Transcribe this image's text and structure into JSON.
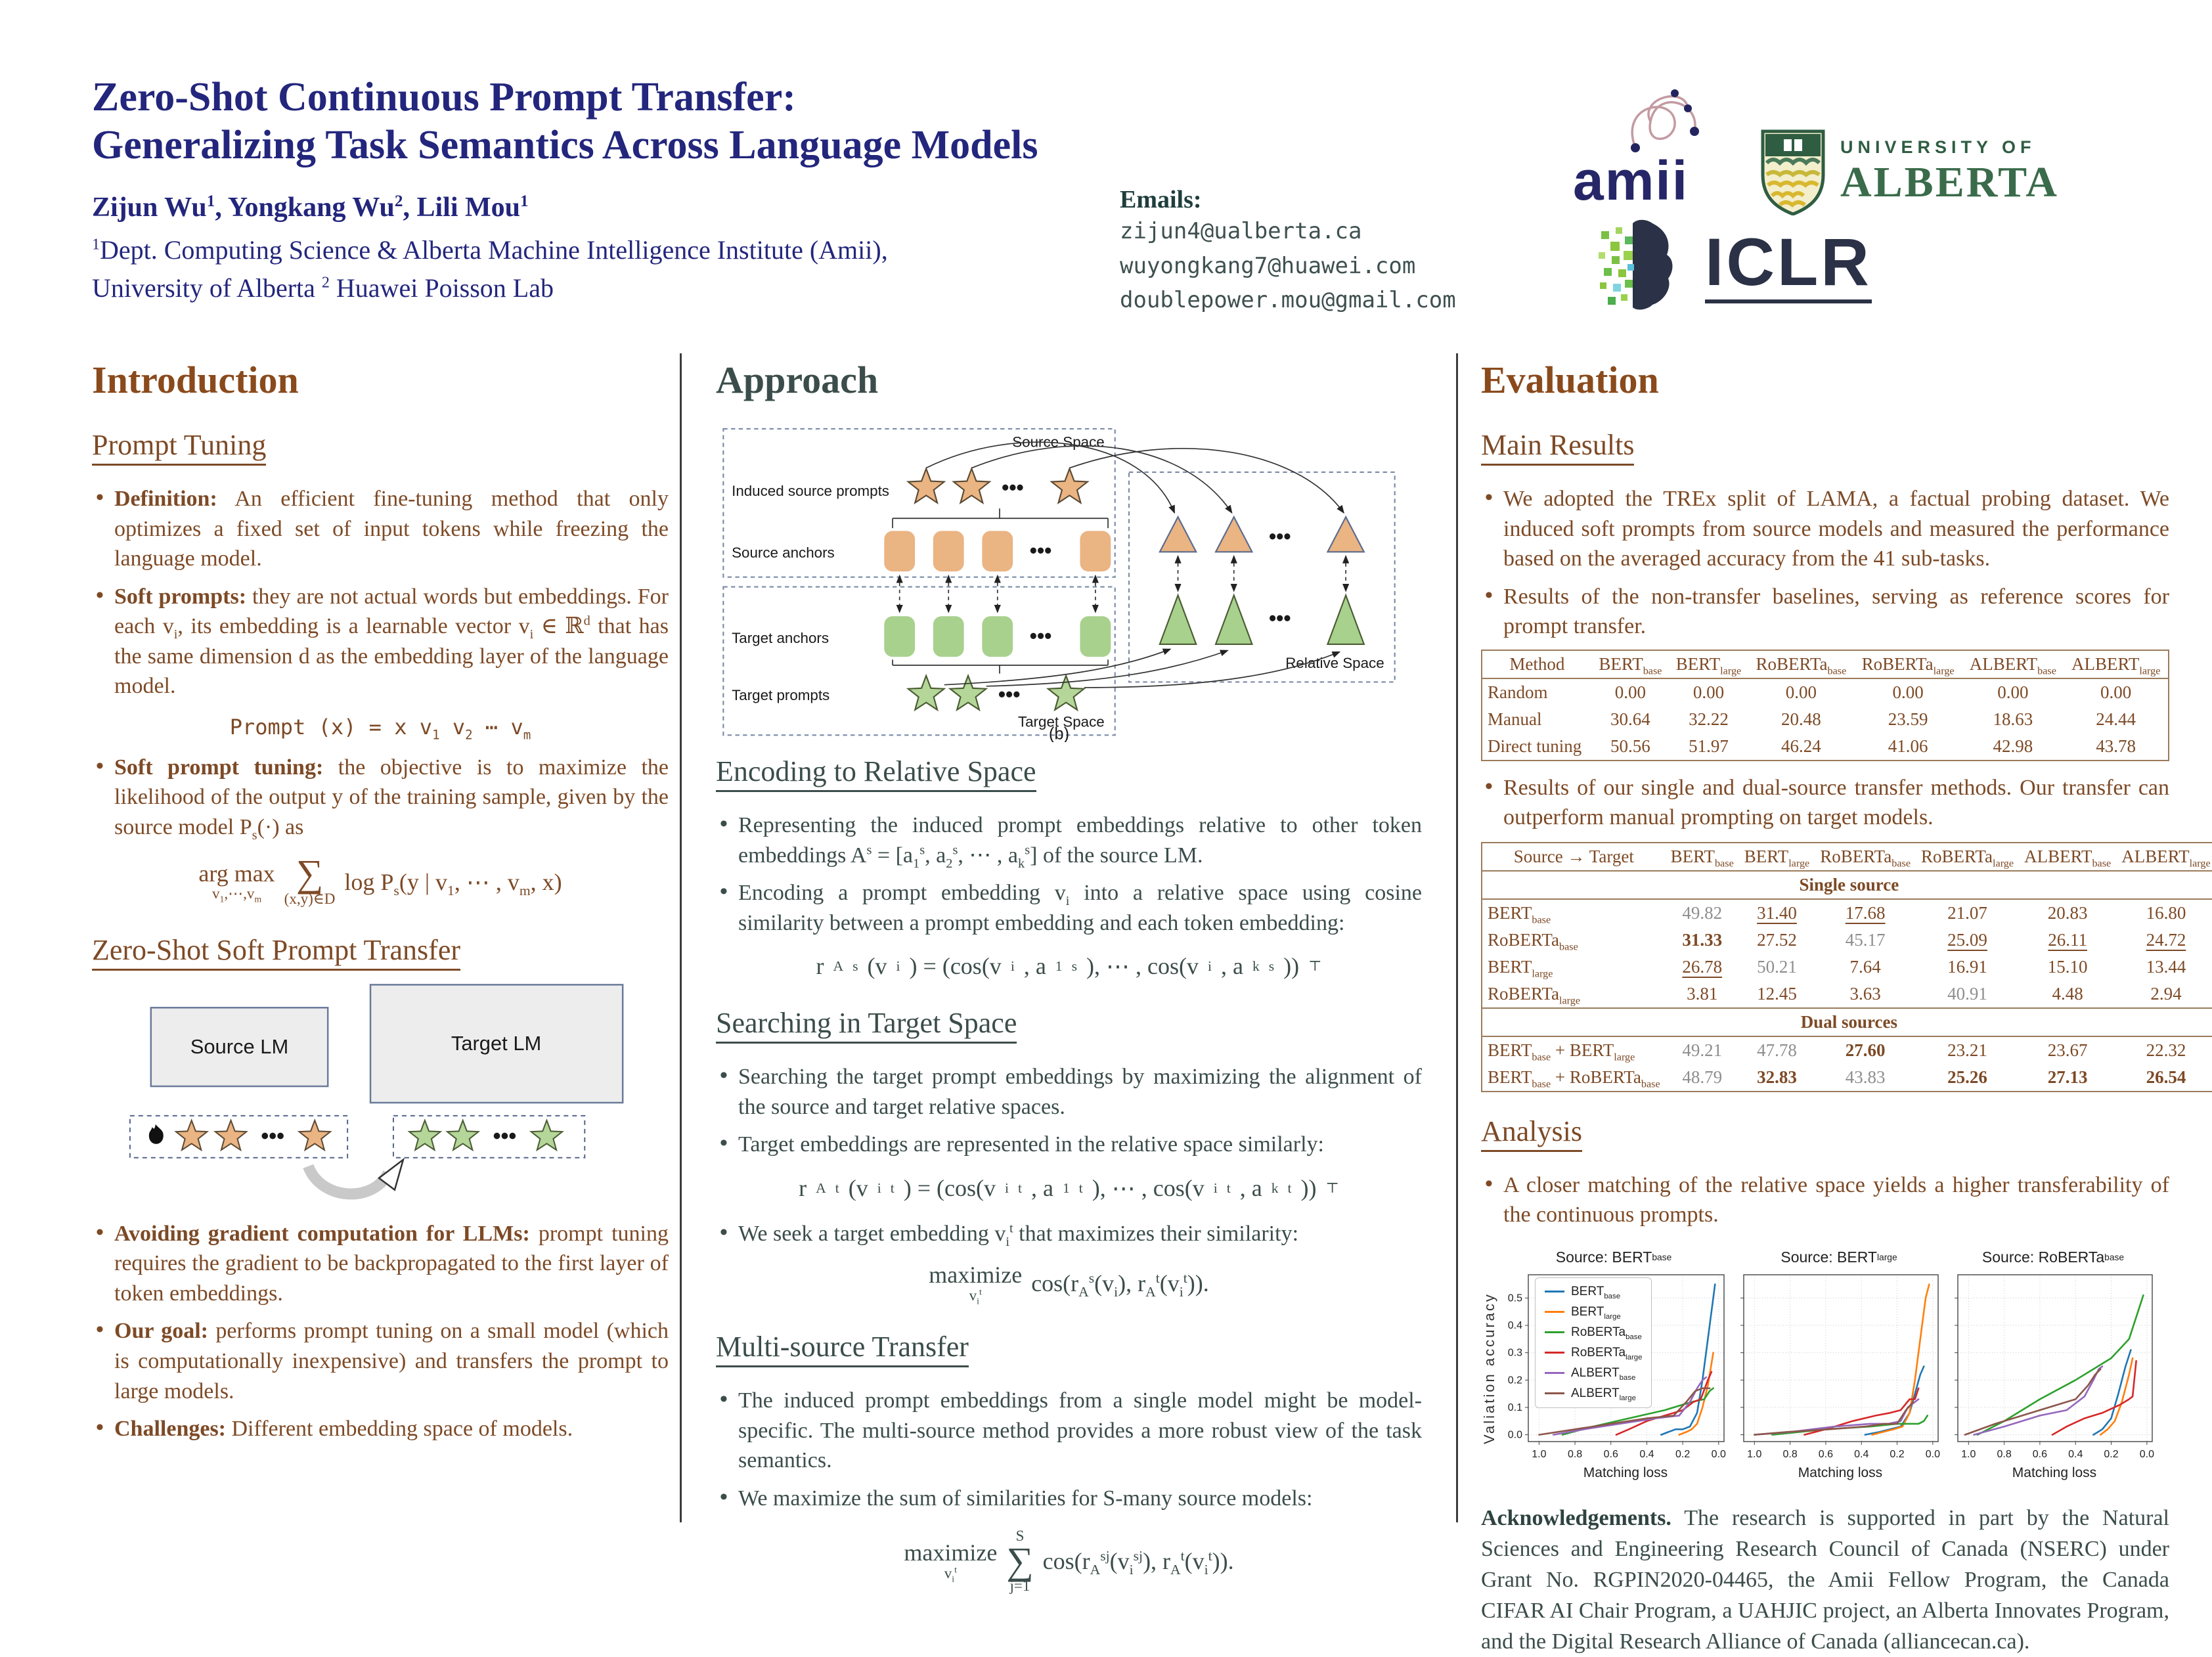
{
  "header": {
    "title_line1": "Zero-Shot Continuous Prompt Transfer:",
    "title_line2": "Generalizing Task Semantics Across Language Models",
    "authors": "Zijun Wu^{1}, Yongkang Wu^{2}, Lili Mou^{1}",
    "affil_line1": "^{1}Dept. Computing Science & Alberta Machine Intelligence Institute (Amii),",
    "affil_line2": "University of Alberta ^{2} Huawei Poisson Lab",
    "emails_label": "Emails:",
    "emails": [
      "zijun4@ualberta.ca",
      "wuyongkang7@huawei.com",
      "doublepower.mou@gmail.com"
    ],
    "logos": {
      "amii": "amii",
      "uofa_line1": "UNIVERSITY OF",
      "uofa_line2": "ALBERTA",
      "iclr": "ICLR"
    }
  },
  "intro": {
    "heading": "Introduction",
    "sub1": "Prompt Tuning",
    "b1": {
      "lead": "Definition:",
      "rest": " An efficient fine-tuning method that only optimizes a fixed set of input tokens while freezing the language model."
    },
    "b2": {
      "lead": "Soft prompts:",
      "rest": " they are not actual words but embeddings. For each v_{i}, its embedding is a learnable vector v_{i} ∈ ℝ^{d} that has the same dimension d as the embedding layer of the language model."
    },
    "eq_prompt": "Prompt (x) = x v_{1} v_{2} ⋯ v_{m}",
    "b3": {
      "lead": "Soft prompt tuning:",
      "rest": " the objective is to maximize the likelihood of the output y of the training sample, given by the source model P_{s}(·) as"
    },
    "eq_argmax": {
      "op": "arg max",
      "op_under": "v_{1},⋯,v_{m}",
      "sum": "∑",
      "sum_under": "(x,y)∈D",
      "body": "log P_{s}(y | v_{1}, ⋯ , v_{m}, x)"
    },
    "sub2": "Zero-Shot Soft Prompt Transfer",
    "diagram": {
      "source_lm": "Source LM",
      "target_lm": "Target LM"
    },
    "b4": {
      "lead": "Avoiding gradient computation for LLMs:",
      "rest": " prompt tuning requires the gradient to be backpropagated to the first layer of token embeddings."
    },
    "b5": {
      "lead": "Our goal:",
      "rest": " performs prompt tuning on a small model (which is computationally inexpensive) and transfers the prompt to large models."
    },
    "b6": {
      "lead": "Challenges:",
      "rest": " Different embedding space of models."
    }
  },
  "approach": {
    "heading": "Approach",
    "figure": {
      "source_space": "Source Space",
      "induced_source_prompts": "Induced source prompts",
      "source_anchors": "Source anchors",
      "target_anchors": "Target anchors",
      "target_prompts": "Target prompts",
      "target_space": "Target Space",
      "relative_space": "Relative Space",
      "caption": "(b)",
      "dots": "•••"
    },
    "sub1": "Encoding to Relative Space",
    "b1": "Representing the induced prompt embeddings relative to other token embeddings A^{s} = [a_{1}^{s}, a_{2}^{s}, ⋯ , a_{k}^{s}] of the source LM.",
    "b2": "Encoding a prompt embedding v_{i} into a relative space using cosine similarity between a prompt embedding and each token embedding:",
    "eq_rs": "r_{A}^{s}(v_{i}) = (cos(v_{i}, a_{1}^{s}), ⋯ , cos(v_{i}, a_{k}^{s}))^{⊤}",
    "sub2": "Searching in Target Space",
    "b3": "Searching the target prompt embeddings by maximizing the alignment of the source and target relative spaces.",
    "b4": "Target embeddings are represented in the relative space similarly:",
    "eq_rt": "r_{A}^{t}(v_{i}^{t}) = (cos(v_{i}^{t}, a_{1}^{t}), ⋯ , cos(v_{i}^{t}, a_{k}^{t}))^{⊤}",
    "b5": "We seek a target embedding v_{i}^{t} that maximizes their similarity:",
    "eq_max": {
      "op": "maximize",
      "op_under": "v_{i}^{t}",
      "body": "cos(r_{A}^{s}(v_{i}), r_{A}^{t}(v_{i}^{t}))."
    },
    "sub3": "Multi-source Transfer",
    "b6": "The induced prompt embeddings from a single model might be model-specific. The multi-source method provides a more robust view of the task semantics.",
    "b7": "We maximize the sum of similarities for S-many source models:",
    "eq_multi": {
      "op": "maximize",
      "op_under": "v_{i}^{t}",
      "sum_top": "S",
      "sum": "∑",
      "sum_under": "j=1",
      "body": "cos(r_{A}^{sj}(v_{i}^{sj}), r_{A}^{t}(v_{i}^{t}))."
    }
  },
  "evaluation": {
    "heading": "Evaluation",
    "sub1": "Main Results",
    "b1": "We adopted the TREx split of LAMA, a factual probing dataset. We induced soft prompts from source models and measured the performance based on the averaged accuracy from the 41 sub-tasks.",
    "b2": "Results of the non-transfer baselines, serving as reference scores for prompt transfer.",
    "table1": {
      "headers": [
        "Method",
        "BERT_{base}",
        "BERT_{large}",
        "RoBERTa_{base}",
        "RoBERTa_{large}",
        "ALBERT_{base}",
        "ALBERT_{large}"
      ],
      "rows": [
        [
          "Random",
          "0.00",
          "0.00",
          "0.00",
          "0.00",
          "0.00",
          "0.00"
        ],
        [
          "Manual",
          "30.64",
          "32.22",
          "20.48",
          "23.59",
          "18.63",
          "24.44"
        ],
        [
          "Direct tuning",
          "50.56",
          "51.97",
          "46.24",
          "41.06",
          "42.98",
          "43.78"
        ]
      ]
    },
    "b3": "Results of our single and dual-source transfer methods. Our transfer can outperform manual prompting on target models.",
    "table2": {
      "headers": [
        "Source → Target",
        "BERT_{base}",
        "BERT_{large}",
        "RoBERTa_{base}",
        "RoBERTa_{large}",
        "ALBERT_{base}",
        "ALBERT_{large}"
      ],
      "groups": [
        {
          "label": "Single source",
          "rows": [
            {
              "label": "BERT_{base}",
              "cells": [
                "49.82|g",
                "31.40|u",
                "17.68|u",
                "21.07",
                "20.83",
                "16.80"
              ]
            },
            {
              "label": "RoBERTa_{base}",
              "cells": [
                "31.33|b",
                "27.52",
                "45.17|g",
                "25.09|u",
                "26.11|u",
                "24.72|u"
              ]
            },
            {
              "label": "BERT_{large}",
              "cells": [
                "26.78|u",
                "50.21|g",
                "7.64",
                "16.91",
                "15.10",
                "13.44"
              ]
            },
            {
              "label": "RoBERTa_{large}",
              "cells": [
                "3.81",
                "12.45",
                "3.63",
                "40.91|g",
                "4.48",
                "2.94"
              ]
            }
          ]
        },
        {
          "label": "Dual sources",
          "rows": [
            {
              "label": "BERT_{base} + BERT_{large}",
              "cells": [
                "49.21|g",
                "47.78|g",
                "27.60|b",
                "23.21",
                "23.67",
                "22.32"
              ]
            },
            {
              "label": "BERT_{base} + RoBERTa_{base}",
              "cells": [
                "48.79|g",
                "32.83|b",
                "43.83|g",
                "25.26|b",
                "27.13|b",
                "26.54|b"
              ]
            }
          ]
        }
      ]
    },
    "sub2": "Analysis",
    "b4": "A closer matching of the relative space yields a higher transferability of the continuous prompts.",
    "ack_lead": "Acknowledgements.",
    "ack_rest": " The research is supported in part by the Natural Sciences and Engineering Research Council of Canada (NSERC) under Grant No. RGPIN2020-04465, the Amii Fellow Program, the Canada CIFAR AI Chair Program, a UAHJIC project, an Alberta Innovates Program, and the Digital Research Alliance of Canada (alliancecan.ca)."
  },
  "chart_data": {
    "type": "line",
    "xlabel": "Matching loss",
    "ylabel": "Valiation accuracy",
    "x_ticks": [
      1.0,
      0.8,
      0.6,
      0.4,
      0.2,
      0.0
    ],
    "y_ticks": [
      0.0,
      0.1,
      0.2,
      0.3,
      0.4,
      0.5
    ],
    "x_reversed": true,
    "xlim": [
      1.06,
      -0.03
    ],
    "ylim": [
      -0.025,
      0.585
    ],
    "grid": true,
    "legend_position": "upper-left-first-panel",
    "legend": [
      "BERT_{base}",
      "BERT_{large}",
      "RoBERTa_{base}",
      "RoBERTa_{large}",
      "ALBERT_{base}",
      "ALBERT_{large}"
    ],
    "colors": [
      "#1f77b4",
      "#ff7f0e",
      "#2ca02c",
      "#d62728",
      "#9467bd",
      "#8c564b"
    ],
    "panels": [
      {
        "title": "Source: BERT_{base}",
        "series": [
          {
            "name": "BERT_{base}",
            "x": [
              0.32,
              0.28,
              0.24,
              0.2,
              0.16,
              0.12,
              0.09,
              0.06,
              0.03,
              0.02
            ],
            "y": [
              0.0,
              0.01,
              0.02,
              0.02,
              0.03,
              0.08,
              0.2,
              0.35,
              0.5,
              0.55
            ]
          },
          {
            "name": "BERT_{large}",
            "x": [
              0.22,
              0.18,
              0.15,
              0.12,
              0.09,
              0.06,
              0.04,
              0.03
            ],
            "y": [
              0.0,
              0.01,
              0.02,
              0.04,
              0.1,
              0.18,
              0.26,
              0.3
            ]
          },
          {
            "name": "RoBERTa_{base}",
            "x": [
              0.87,
              0.7,
              0.5,
              0.3,
              0.15,
              0.08,
              0.05,
              0.03
            ],
            "y": [
              0.0,
              0.03,
              0.06,
              0.09,
              0.12,
              0.13,
              0.16,
              0.17
            ]
          },
          {
            "name": "RoBERTa_{large}",
            "x": [
              0.57,
              0.5,
              0.4,
              0.3,
              0.2,
              0.14,
              0.1,
              0.06,
              0.04
            ],
            "y": [
              0.0,
              0.02,
              0.05,
              0.07,
              0.09,
              0.12,
              0.13,
              0.2,
              0.23
            ]
          },
          {
            "name": "ALBERT_{base}",
            "x": [
              0.92,
              0.75,
              0.55,
              0.35,
              0.22,
              0.16,
              0.12,
              0.09,
              0.07
            ],
            "y": [
              0.0,
              0.02,
              0.04,
              0.06,
              0.07,
              0.12,
              0.17,
              0.2,
              0.21
            ]
          },
          {
            "name": "ALBERT_{large}",
            "x": [
              1.0,
              0.8,
              0.6,
              0.4,
              0.25,
              0.18,
              0.13,
              0.09,
              0.05
            ],
            "y": [
              0.0,
              0.02,
              0.04,
              0.06,
              0.07,
              0.12,
              0.16,
              0.17,
              0.17
            ]
          }
        ]
      },
      {
        "title": "Source: BERT_{large}",
        "series": [
          {
            "name": "BERT_{base}",
            "x": [
              0.38,
              0.3,
              0.24,
              0.18,
              0.13,
              0.1,
              0.07,
              0.05
            ],
            "y": [
              0.0,
              0.01,
              0.02,
              0.03,
              0.08,
              0.15,
              0.22,
              0.25
            ]
          },
          {
            "name": "BERT_{large}",
            "x": [
              0.34,
              0.28,
              0.22,
              0.17,
              0.13,
              0.1,
              0.07,
              0.04,
              0.02
            ],
            "y": [
              0.0,
              0.01,
              0.02,
              0.03,
              0.08,
              0.2,
              0.35,
              0.5,
              0.55
            ]
          },
          {
            "name": "RoBERTa_{base}",
            "x": [
              0.9,
              0.6,
              0.35,
              0.2,
              0.12,
              0.08,
              0.05,
              0.03
            ],
            "y": [
              0.0,
              0.02,
              0.03,
              0.04,
              0.04,
              0.04,
              0.05,
              0.07
            ]
          },
          {
            "name": "RoBERTa_{large}",
            "x": [
              0.72,
              0.6,
              0.45,
              0.32,
              0.24,
              0.18,
              0.13,
              0.1,
              0.08
            ],
            "y": [
              0.0,
              0.02,
              0.05,
              0.07,
              0.08,
              0.09,
              0.13,
              0.13,
              0.17
            ]
          },
          {
            "name": "ALBERT_{base}",
            "x": [
              1.0,
              0.8,
              0.55,
              0.35,
              0.25,
              0.18,
              0.14,
              0.1,
              0.08
            ],
            "y": [
              0.0,
              0.01,
              0.03,
              0.04,
              0.04,
              0.05,
              0.1,
              0.12,
              0.13
            ]
          },
          {
            "name": "ALBERT_{large}",
            "x": [
              1.0,
              0.82,
              0.58,
              0.38,
              0.27,
              0.2,
              0.15,
              0.11
            ],
            "y": [
              0.0,
              0.01,
              0.02,
              0.03,
              0.04,
              0.04,
              0.09,
              0.12
            ]
          }
        ]
      },
      {
        "title": "Source: RoBERTa_{base}",
        "series": [
          {
            "name": "BERT_{base}",
            "x": [
              0.3,
              0.25,
              0.2,
              0.16,
              0.12,
              0.09
            ],
            "y": [
              0.0,
              0.02,
              0.06,
              0.15,
              0.25,
              0.31
            ]
          },
          {
            "name": "BERT_{large}",
            "x": [
              0.26,
              0.22,
              0.18,
              0.14,
              0.1,
              0.08
            ],
            "y": [
              0.0,
              0.02,
              0.05,
              0.12,
              0.22,
              0.28
            ]
          },
          {
            "name": "RoBERTa_{base}",
            "x": [
              0.95,
              0.8,
              0.6,
              0.4,
              0.2,
              0.1,
              0.05,
              0.02
            ],
            "y": [
              0.0,
              0.05,
              0.13,
              0.2,
              0.28,
              0.35,
              0.45,
              0.51
            ]
          },
          {
            "name": "RoBERTa_{large}",
            "x": [
              0.53,
              0.45,
              0.35,
              0.25,
              0.15,
              0.1,
              0.08,
              0.06
            ],
            "y": [
              0.0,
              0.03,
              0.06,
              0.08,
              0.11,
              0.13,
              0.14,
              0.27
            ]
          },
          {
            "name": "ALBERT_{base}",
            "x": [
              0.97,
              0.8,
              0.6,
              0.45,
              0.35,
              0.3,
              0.27,
              0.25
            ],
            "y": [
              0.0,
              0.03,
              0.07,
              0.09,
              0.14,
              0.2,
              0.24,
              0.25
            ]
          },
          {
            "name": "ALBERT_{large}",
            "x": [
              1.02,
              0.85,
              0.65,
              0.5,
              0.4,
              0.33,
              0.29,
              0.26
            ],
            "y": [
              0.0,
              0.04,
              0.08,
              0.11,
              0.13,
              0.18,
              0.22,
              0.24
            ]
          }
        ]
      }
    ]
  }
}
